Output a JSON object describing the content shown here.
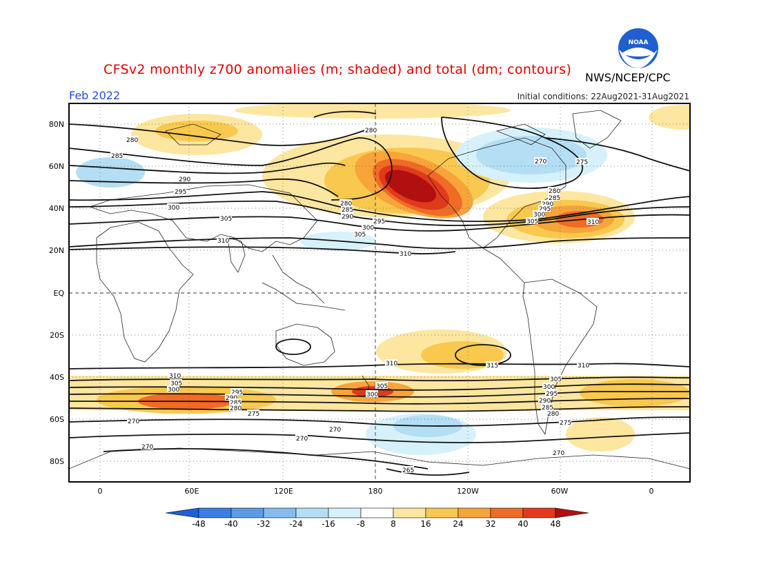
{
  "header": {
    "title": "CFSv2 monthly z700 anomalies (m; shaded) and total (dm; contours)",
    "agency": "NWS/NCEP/CPC",
    "period": "Feb 2022",
    "initial_conditions": "Initial conditions: 22Aug2021-31Aug2021",
    "logo_text": "NOAA"
  },
  "map": {
    "lat_labels": [
      "80N",
      "60N",
      "40N",
      "20N",
      "EQ",
      "20S",
      "40S",
      "60S",
      "80S"
    ],
    "lon_labels": [
      "0",
      "60E",
      "120E",
      "180",
      "120W",
      "60W",
      "0"
    ],
    "colors": {
      "neg48": "#1e5fd8",
      "neg40": "#3c7ee6",
      "neg32": "#5b9be9",
      "neg24": "#86bcee",
      "neg16": "#b4def4",
      "neg8": "#d6f1fa",
      "zero": "#ffffff",
      "pos8": "#fde6a0",
      "pos16": "#f9c84e",
      "pos24": "#f7a43a",
      "pos32": "#ef6b26",
      "pos40": "#e13a1b",
      "pos48": "#b01010"
    },
    "contour_labels": [
      "270",
      "275",
      "280",
      "285",
      "290",
      "295",
      "300",
      "305",
      "310",
      "315",
      "265"
    ]
  },
  "colorbar": {
    "ticks": [
      "-48",
      "-40",
      "-32",
      "-24",
      "-16",
      "-8",
      "8",
      "16",
      "24",
      "32",
      "40",
      "48"
    ],
    "colors": [
      "#1e5fd8",
      "#3c7ee6",
      "#5b9be9",
      "#86bcee",
      "#b4def4",
      "#d6f1fa",
      "#ffffff",
      "#fde6a0",
      "#f9c84e",
      "#f7a43a",
      "#ef6b26",
      "#e13a1b",
      "#b01010"
    ]
  }
}
